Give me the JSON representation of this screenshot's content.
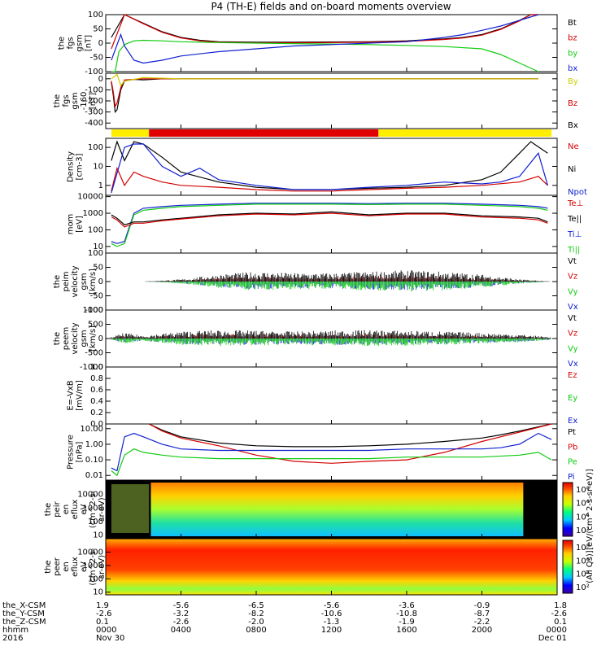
{
  "title": "P4 (TH-E) fields and on-board moments overview",
  "colors": {
    "black": "#000000",
    "red": "#d40000",
    "green": "#11cc11",
    "blue": "#1020d0",
    "yellow": "#ffee00",
    "bar_red": "#e00000"
  },
  "chart_data": [
    {
      "type": "line",
      "ylabel": [
        "the",
        "fgs",
        "gsm",
        "[nT]"
      ],
      "ylim": [
        -100,
        100
      ],
      "yticks": [
        "100",
        "50",
        "0",
        "-50",
        "-100"
      ],
      "legend": [
        {
          "label": "Bt",
          "color": "#000000"
        },
        {
          "label": "bz",
          "color": "#d40000"
        },
        {
          "label": "by",
          "color": "#11cc11"
        },
        {
          "label": "bx",
          "color": "#1020d0"
        }
      ],
      "series": [
        {
          "name": "Bt",
          "x": [
            0.3,
            1,
            2,
            3,
            4,
            5,
            6,
            8,
            10,
            12,
            14,
            16,
            18,
            19,
            20,
            21,
            22,
            22.6,
            23
          ],
          "y": [
            20,
            100,
            70,
            40,
            20,
            10,
            5,
            3,
            3,
            4,
            5,
            8,
            15,
            20,
            30,
            50,
            80,
            100,
            100
          ]
        },
        {
          "name": "bz",
          "x": [
            0.3,
            1,
            2,
            3,
            4,
            5,
            6,
            8,
            10,
            12,
            14,
            16,
            18,
            19,
            20,
            21,
            22,
            22.6,
            23
          ],
          "y": [
            -20,
            100,
            68,
            38,
            18,
            8,
            3,
            1,
            1,
            2,
            3,
            6,
            13,
            18,
            28,
            48,
            78,
            100,
            100
          ]
        },
        {
          "name": "by",
          "x": [
            0.3,
            0.5,
            0.7,
            1,
            1.5,
            2,
            3,
            4,
            6,
            8,
            10,
            12,
            14,
            16,
            18,
            20,
            21,
            22,
            23
          ],
          "y": [
            -100,
            -100,
            -30,
            -5,
            8,
            10,
            8,
            5,
            2,
            0,
            -2,
            -3,
            -5,
            -8,
            -12,
            -20,
            -40,
            -70,
            -100
          ]
        },
        {
          "name": "bx",
          "x": [
            0.3,
            0.8,
            1,
            1.5,
            2,
            3,
            4,
            6,
            8,
            10,
            12,
            14,
            16,
            18,
            19,
            20,
            21,
            22,
            23
          ],
          "y": [
            -60,
            30,
            -10,
            -60,
            -70,
            -60,
            -45,
            -30,
            -20,
            -10,
            -5,
            0,
            5,
            20,
            30,
            45,
            60,
            80,
            100
          ]
        }
      ]
    },
    {
      "type": "line",
      "ylabel": [
        "the",
        "fgs",
        "gsm",
        "-160",
        "[nT]"
      ],
      "ylim": [
        -450,
        50
      ],
      "yticks": [
        "0",
        "-100",
        "-200",
        "-300",
        "-400"
      ],
      "legend": [
        {
          "label": "By",
          "color": "#cccc00"
        },
        {
          "label": "Bz",
          "color": "#d40000"
        },
        {
          "label": "Bx",
          "color": "#000000"
        }
      ],
      "series": [
        {
          "name": "Bx",
          "x": [
            0.3,
            0.4,
            0.5,
            0.6,
            0.8,
            1,
            1.5,
            2,
            3,
            23
          ],
          "y": [
            -30,
            -150,
            -300,
            -280,
            -100,
            -20,
            -5,
            -10,
            0,
            0
          ]
        },
        {
          "name": "Bz",
          "x": [
            0.3,
            0.4,
            0.5,
            0.6,
            0.8,
            1,
            2,
            3,
            23
          ],
          "y": [
            -20,
            -120,
            -250,
            -220,
            -80,
            -10,
            0,
            0,
            0
          ]
        },
        {
          "name": "By",
          "x": [
            0.3,
            0.6,
            0.8,
            1,
            2,
            4,
            23
          ],
          "y": [
            0,
            40,
            -60,
            -20,
            10,
            0,
            0
          ]
        }
      ]
    },
    {
      "type": "region_bar",
      "segments": [
        {
          "from": 0.3,
          "to": 2.3,
          "color": "#ffee00"
        },
        {
          "from": 2.3,
          "to": 14.5,
          "color": "#e00000"
        },
        {
          "from": 14.5,
          "to": 23.7,
          "color": "#ffee00"
        }
      ]
    },
    {
      "type": "line",
      "ylabel": [
        "Density",
        "[cm-3]"
      ],
      "yscale": "log",
      "ylim": [
        0.3,
        300
      ],
      "yticks": [
        "100",
        "10",
        "1"
      ],
      "legend": [
        {
          "label": "Ne",
          "color": "#d40000"
        },
        {
          "label": "Ni",
          "color": "#000000"
        },
        {
          "label": "Npot",
          "color": "#1020d0"
        }
      ],
      "series": [
        {
          "name": "Ni",
          "x": [
            0.3,
            0.6,
            1,
            1.5,
            2,
            3,
            4,
            6,
            8,
            10,
            12,
            14,
            16,
            18,
            20,
            21,
            22,
            22.6,
            23.5
          ],
          "y": [
            20,
            200,
            20,
            200,
            150,
            30,
            5,
            1.5,
            0.8,
            0.6,
            0.6,
            0.7,
            0.8,
            1,
            2,
            5,
            50,
            200,
            50
          ]
        },
        {
          "name": "Ne",
          "x": [
            0.3,
            0.6,
            1,
            1.5,
            2,
            3,
            4,
            6,
            8,
            10,
            12,
            14,
            16,
            18,
            20,
            22,
            23,
            23.5
          ],
          "y": [
            0.5,
            8,
            1,
            5,
            3,
            1.5,
            1,
            0.8,
            0.6,
            0.5,
            0.5,
            0.6,
            0.7,
            0.8,
            1,
            1.5,
            3,
            1
          ]
        },
        {
          "name": "Npot",
          "x": [
            0.3,
            1,
            1.5,
            2,
            3,
            4,
            5,
            6,
            8,
            10,
            12,
            14,
            16,
            18,
            20,
            21,
            22,
            23,
            23.5
          ],
          "y": [
            0.4,
            100,
            150,
            150,
            10,
            3,
            8,
            2,
            1,
            0.6,
            0.6,
            0.8,
            1,
            1.5,
            1.2,
            1.5,
            3,
            50,
            1
          ]
        }
      ]
    },
    {
      "type": "line",
      "ylabel": [
        "mom",
        "[eV]"
      ],
      "yscale": "log",
      "ylim": [
        4,
        12000
      ],
      "yticks": [
        "10000",
        "1000",
        "100",
        "10"
      ],
      "legend": [
        {
          "label": "Te⊥",
          "color": "#d40000"
        },
        {
          "label": "Te||",
          "color": "#000000"
        },
        {
          "label": "Ti⊥",
          "color": "#1020d0"
        },
        {
          "label": "Ti||",
          "color": "#11cc11"
        }
      ],
      "series": [
        {
          "name": "Ti⊥",
          "x": [
            0.3,
            0.6,
            1,
            1.5,
            2,
            3,
            4,
            6,
            8,
            10,
            12,
            14,
            16,
            18,
            20,
            22,
            23,
            23.5
          ],
          "y": [
            20,
            15,
            20,
            1000,
            2000,
            2500,
            3000,
            3500,
            4000,
            4000,
            4000,
            3800,
            4000,
            4000,
            3500,
            3000,
            2500,
            2000
          ]
        },
        {
          "name": "Ti||",
          "x": [
            0.3,
            0.6,
            1,
            1.5,
            2,
            3,
            4,
            6,
            8,
            10,
            12,
            14,
            16,
            18,
            20,
            22,
            23,
            23.5
          ],
          "y": [
            15,
            10,
            15,
            800,
            1500,
            2000,
            2500,
            3000,
            3500,
            3500,
            3500,
            3300,
            3500,
            3500,
            3000,
            2500,
            2000,
            1500
          ]
        },
        {
          "name": "Te||",
          "x": [
            0.3,
            0.6,
            1,
            1.5,
            2,
            3,
            4,
            6,
            8,
            10,
            12,
            14,
            16,
            18,
            20,
            22,
            23,
            23.5
          ],
          "y": [
            800,
            500,
            200,
            300,
            300,
            400,
            500,
            800,
            1000,
            900,
            1200,
            800,
            1000,
            1000,
            700,
            600,
            500,
            300
          ]
        },
        {
          "name": "Te⊥",
          "x": [
            0.3,
            0.6,
            1,
            1.5,
            2,
            3,
            4,
            6,
            8,
            10,
            12,
            14,
            16,
            18,
            20,
            22,
            23,
            23.5
          ],
          "y": [
            600,
            400,
            150,
            250,
            250,
            350,
            450,
            700,
            900,
            800,
            1000,
            700,
            900,
            900,
            600,
            500,
            400,
            250
          ]
        }
      ]
    },
    {
      "type": "line",
      "ylabel": [
        "the",
        "peim",
        "velocity",
        "gsm",
        "[km/s]"
      ],
      "ylim": [
        -100,
        100
      ],
      "yticks": [
        "100",
        "50",
        "0",
        "-50",
        "-100"
      ],
      "legend": [
        {
          "label": "Vt",
          "color": "#000000"
        },
        {
          "label": "Vz",
          "color": "#d40000"
        },
        {
          "label": "Vy",
          "color": "#11cc11"
        },
        {
          "label": "Vx",
          "color": "#1020d0"
        }
      ],
      "envelope": {
        "x": [
          0,
          2,
          4,
          6,
          8,
          10,
          12,
          14,
          16,
          18,
          20,
          22,
          23.7
        ],
        "amp": [
          0,
          0,
          8,
          25,
          35,
          30,
          30,
          35,
          40,
          35,
          25,
          8,
          0
        ]
      }
    },
    {
      "type": "line",
      "ylabel": [
        "the",
        "peem",
        "velocity",
        "gsm",
        "[km/s]"
      ],
      "ylim": [
        -1000,
        1000
      ],
      "yticks": [
        "1000",
        "500",
        "0",
        "-500",
        "-1000"
      ],
      "legend": [
        {
          "label": "Vt",
          "color": "#000000"
        },
        {
          "label": "Vz",
          "color": "#d40000"
        },
        {
          "label": "Vy",
          "color": "#11cc11"
        },
        {
          "label": "Vx",
          "color": "#1020d0"
        }
      ],
      "envelope": {
        "x": [
          0,
          1,
          2,
          4,
          6,
          8,
          10,
          12,
          14,
          16,
          18,
          20,
          22,
          23.7
        ],
        "amp": [
          0,
          200,
          100,
          250,
          300,
          280,
          250,
          280,
          300,
          280,
          250,
          200,
          150,
          50
        ]
      }
    },
    {
      "type": "line",
      "ylabel": [
        "E=-VxB",
        "[mV/m]"
      ],
      "ylim": [
        0.0,
        1.0
      ],
      "yticks": [
        "1.0",
        "0.8",
        "0.6",
        "0.4",
        "0.2",
        "0.0"
      ],
      "legend": [
        {
          "label": "Ez",
          "color": "#d40000"
        },
        {
          "label": "Ey",
          "color": "#11cc11"
        },
        {
          "label": "Ex",
          "color": "#1020d0"
        }
      ],
      "series": []
    },
    {
      "type": "line",
      "ylabel": [
        "Pressure",
        "[nPa]"
      ],
      "yscale": "log",
      "ylim": [
        0.005,
        20
      ],
      "yticks": [
        "10.00",
        "1.00",
        "0.10",
        "0.01"
      ],
      "legend": [
        {
          "label": "Pt",
          "color": "#000000"
        },
        {
          "label": "Pb",
          "color": "#d40000"
        },
        {
          "label": "Pe",
          "color": "#11cc11"
        },
        {
          "label": "Pi",
          "color": "#1020d0"
        }
      ],
      "series": [
        {
          "name": "Pt",
          "x": [
            2.3,
            3,
            4,
            6,
            8,
            10,
            12,
            14,
            16,
            18,
            20,
            21,
            22,
            23,
            23.7
          ],
          "y": [
            20,
            8,
            3,
            1.2,
            0.8,
            0.7,
            0.7,
            0.8,
            1,
            1.5,
            2.5,
            4,
            7,
            13,
            20
          ]
        },
        {
          "name": "Pb",
          "x": [
            2.3,
            3,
            4,
            6,
            8,
            10,
            12,
            14,
            16,
            18,
            20,
            21,
            22,
            23,
            23.7
          ],
          "y": [
            20,
            7,
            2.5,
            0.8,
            0.2,
            0.08,
            0.06,
            0.08,
            0.1,
            0.3,
            1.5,
            3,
            6,
            12,
            20
          ]
        },
        {
          "name": "Pi",
          "x": [
            0.3,
            0.6,
            1,
            1.5,
            2,
            3,
            4,
            6,
            8,
            10,
            12,
            14,
            16,
            18,
            20,
            21,
            22,
            23,
            23.7
          ],
          "y": [
            0.03,
            0.02,
            3,
            5,
            3,
            1,
            0.5,
            0.4,
            0.4,
            0.4,
            0.4,
            0.4,
            0.5,
            0.5,
            0.5,
            0.6,
            1,
            5,
            2
          ]
        },
        {
          "name": "Pe",
          "x": [
            0.3,
            0.6,
            1,
            1.5,
            2,
            3,
            4,
            6,
            8,
            10,
            12,
            14,
            16,
            18,
            20,
            22,
            23,
            23.7
          ],
          "y": [
            0.02,
            0.01,
            0.2,
            0.5,
            0.3,
            0.2,
            0.15,
            0.12,
            0.12,
            0.12,
            0.12,
            0.12,
            0.15,
            0.15,
            0.15,
            0.2,
            0.3,
            0.1
          ]
        }
      ]
    },
    {
      "type": "heatmap",
      "ylabel": [
        "the",
        "peir",
        "en",
        "eflux",
        "eV",
        "(cm^2-s-",
        "sr-eV)"
      ],
      "yscale": "log",
      "yticks": [
        "10000",
        "1000",
        "100",
        "10"
      ],
      "colorbar_ticks": [
        "10⁸",
        "10⁶",
        "10⁴",
        "10²"
      ],
      "colorbar_label": "[eV/(cm^2-s-sr-eV)]"
    },
    {
      "type": "heatmap",
      "ylabel": [
        "the",
        "peer",
        "en",
        "eflux",
        "eV",
        "(cm^2-s-",
        "sr-eV)"
      ],
      "yscale": "log",
      "yticks": [
        "10000",
        "1000",
        "100",
        "10"
      ],
      "colorbar_ticks": [
        "10⁸",
        "10⁶",
        "10⁴",
        "10²"
      ],
      "colorbar_label": "(All Qs)]"
    }
  ],
  "xaxis": {
    "row_labels": [
      "the_X-CSM",
      "the_Y-CSM",
      "the_Z-CSM",
      "hhmm",
      "2016"
    ],
    "ticks": [
      {
        "pos": 0,
        "X": "1.9",
        "Y": "-2.6",
        "Z": "0.1",
        "hhmm": "0000",
        "date": "Nov 30"
      },
      {
        "pos": 4,
        "X": "-5.6",
        "Y": "-3.2",
        "Z": "-2.6",
        "hhmm": "0400",
        "date": ""
      },
      {
        "pos": 8,
        "X": "-6.5",
        "Y": "-8.2",
        "Z": "-2.0",
        "hhmm": "0800",
        "date": ""
      },
      {
        "pos": 12,
        "X": "-5.6",
        "Y": "-10.6",
        "Z": "-1.3",
        "hhmm": "1200",
        "date": ""
      },
      {
        "pos": 16,
        "X": "-3.6",
        "Y": "-10.8",
        "Z": "-1.9",
        "hhmm": "1600",
        "date": ""
      },
      {
        "pos": 20,
        "X": "-0.9",
        "Y": "-8.7",
        "Z": "-2.2",
        "hhmm": "2000",
        "date": ""
      },
      {
        "pos": 24,
        "X": "1.8",
        "Y": "-2.6",
        "Z": "0.1",
        "hhmm": "0000",
        "date": "Dec 01"
      }
    ]
  }
}
